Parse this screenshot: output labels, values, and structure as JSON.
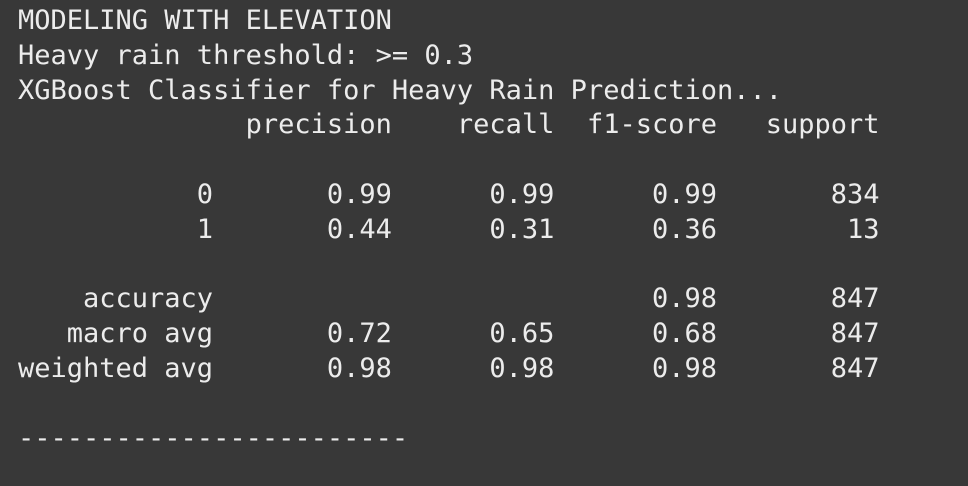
{
  "output": {
    "heading": "MODELING WITH ELEVATION",
    "threshold_line": "Heavy rain threshold: >= 0.3",
    "model_line": "XGBoost Classifier for Heavy Rain Prediction...",
    "report": {
      "header": "              precision    recall  f1-score   support",
      "class_0": "           0       0.99      0.99      0.99       834",
      "class_1": "           1       0.44      0.31      0.36        13",
      "accuracy": "    accuracy                           0.98       847",
      "macro_avg": "   macro avg       0.72      0.65      0.68       847",
      "weighted_avg": "weighted avg       0.98      0.98      0.98       847"
    },
    "separator": "------------------------"
  }
}
